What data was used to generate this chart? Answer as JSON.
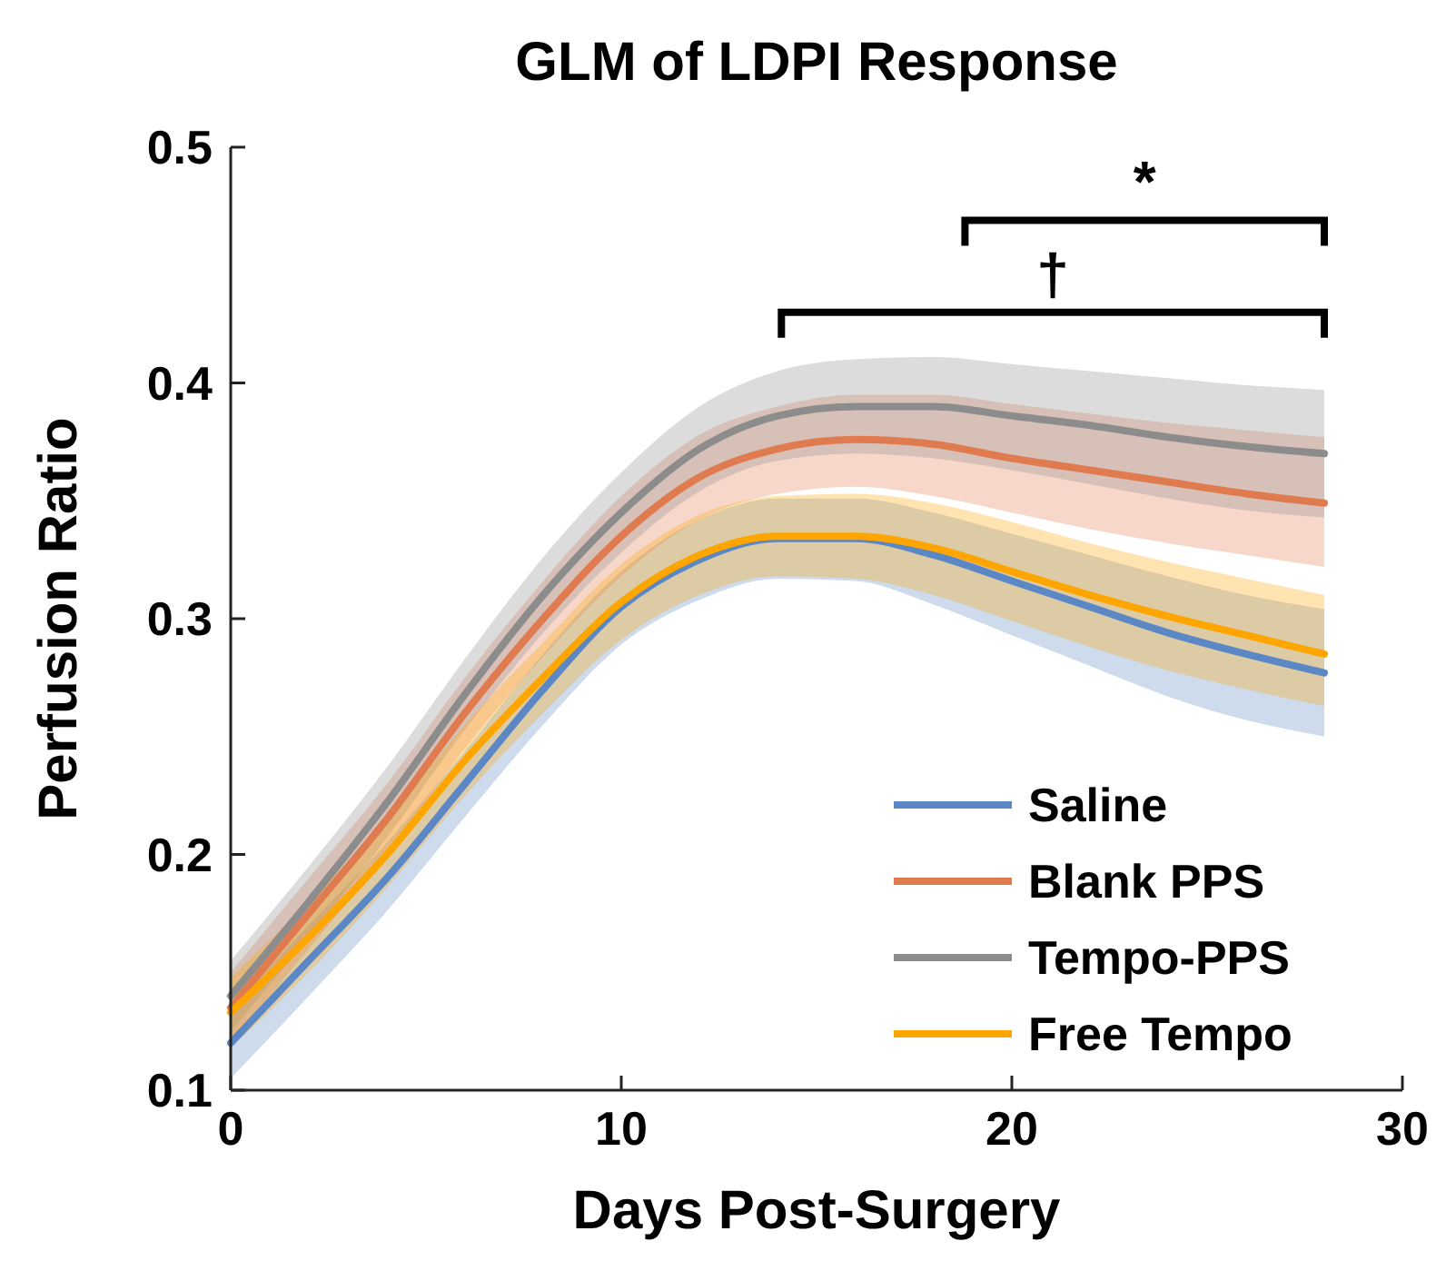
{
  "chart_data": {
    "type": "line",
    "title": "GLM of LDPI Response",
    "xlabel": "Days Post-Surgery",
    "ylabel": "Perfusion Ratio",
    "x": [
      0,
      2,
      4,
      6,
      8,
      10,
      12,
      14,
      16,
      18,
      20,
      22,
      24,
      26,
      28
    ],
    "series": [
      {
        "name": "Saline",
        "color": "#5b87c5",
        "values": [
          0.12,
          0.155,
          0.19,
          0.23,
          0.27,
          0.305,
          0.325,
          0.334,
          0.334,
          0.327,
          0.316,
          0.305,
          0.294,
          0.285,
          0.277
        ],
        "lower": [
          0.105,
          0.14,
          0.176,
          0.216,
          0.255,
          0.289,
          0.308,
          0.317,
          0.316,
          0.306,
          0.293,
          0.28,
          0.267,
          0.257,
          0.25
        ],
        "upper": [
          0.135,
          0.17,
          0.205,
          0.244,
          0.285,
          0.32,
          0.342,
          0.351,
          0.351,
          0.345,
          0.336,
          0.327,
          0.318,
          0.31,
          0.304
        ]
      },
      {
        "name": "Blank PPS",
        "color": "#e07b4f",
        "values": [
          0.135,
          0.175,
          0.215,
          0.26,
          0.3,
          0.335,
          0.36,
          0.372,
          0.376,
          0.374,
          0.368,
          0.363,
          0.358,
          0.353,
          0.349
        ],
        "lower": [
          0.12,
          0.16,
          0.2,
          0.245,
          0.284,
          0.318,
          0.342,
          0.353,
          0.356,
          0.352,
          0.345,
          0.338,
          0.332,
          0.327,
          0.322
        ],
        "upper": [
          0.15,
          0.19,
          0.23,
          0.275,
          0.316,
          0.352,
          0.378,
          0.39,
          0.395,
          0.395,
          0.391,
          0.387,
          0.383,
          0.38,
          0.377
        ]
      },
      {
        "name": "Tempo-PPS",
        "color": "#8c8c8c",
        "values": [
          0.14,
          0.18,
          0.222,
          0.268,
          0.31,
          0.345,
          0.372,
          0.386,
          0.39,
          0.39,
          0.386,
          0.382,
          0.377,
          0.373,
          0.37
        ],
        "lower": [
          0.125,
          0.165,
          0.207,
          0.253,
          0.294,
          0.328,
          0.354,
          0.367,
          0.37,
          0.368,
          0.363,
          0.357,
          0.351,
          0.346,
          0.343
        ],
        "upper": [
          0.155,
          0.195,
          0.237,
          0.283,
          0.326,
          0.362,
          0.39,
          0.405,
          0.41,
          0.411,
          0.408,
          0.405,
          0.402,
          0.399,
          0.397
        ]
      },
      {
        "name": "Free Tempo",
        "color": "#ffa500",
        "values": [
          0.133,
          0.165,
          0.2,
          0.24,
          0.275,
          0.307,
          0.327,
          0.335,
          0.335,
          0.33,
          0.32,
          0.31,
          0.301,
          0.293,
          0.285
        ],
        "lower": [
          0.118,
          0.15,
          0.186,
          0.225,
          0.26,
          0.291,
          0.31,
          0.318,
          0.317,
          0.31,
          0.299,
          0.288,
          0.278,
          0.27,
          0.263
        ],
        "upper": [
          0.148,
          0.18,
          0.215,
          0.255,
          0.29,
          0.323,
          0.344,
          0.352,
          0.353,
          0.349,
          0.341,
          0.332,
          0.324,
          0.317,
          0.31
        ]
      }
    ],
    "xlim": [
      0,
      30
    ],
    "xticks": [
      0,
      10,
      20,
      30
    ],
    "ylim": [
      0.1,
      0.5
    ],
    "yticks": [
      0.1,
      0.2,
      0.3,
      0.4,
      0.5
    ],
    "legend": "bottom right",
    "annotations": [
      "*",
      "†"
    ]
  }
}
